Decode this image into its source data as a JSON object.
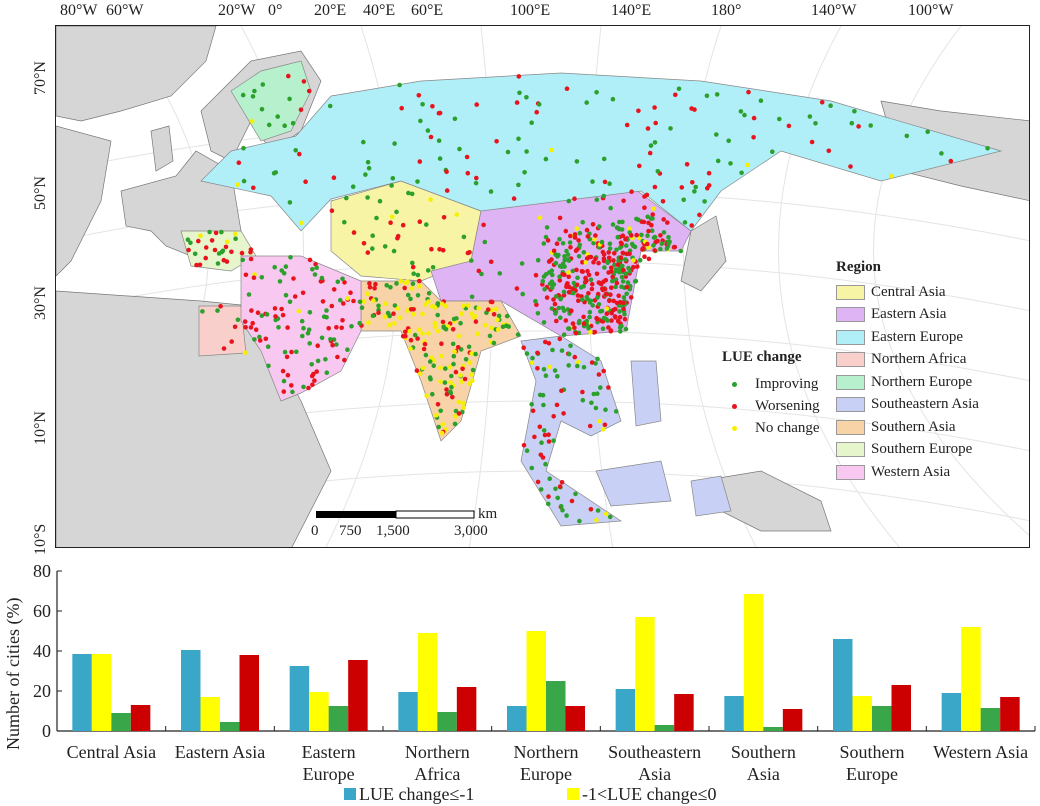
{
  "map": {
    "longitude_labels": [
      "80°W",
      "60°W",
      "20°W",
      "0°",
      "20°E",
      "40°E",
      "60°E",
      "100°E",
      "140°E",
      "180°",
      "140°W",
      "100°W"
    ],
    "latitude_labels": [
      "70°N",
      "50°N",
      "30°N",
      "10°N",
      "10°S"
    ],
    "scale_bar": {
      "unit": "km",
      "ticks": [
        "0",
        "750",
        "1,500",
        "3,000"
      ]
    },
    "region_legend": {
      "title": "Region",
      "items": [
        {
          "label": "Central Asia",
          "color": "#f7f4a6"
        },
        {
          "label": "Eastern Asia",
          "color": "#deb4f5"
        },
        {
          "label": "Eastern Europe",
          "color": "#b0eef8"
        },
        {
          "label": "Northern Africa",
          "color": "#f9cfcc"
        },
        {
          "label": "Northern Europe",
          "color": "#b6f0cc"
        },
        {
          "label": "Southeastern Asia",
          "color": "#c8d0f5"
        },
        {
          "label": "Southern Asia",
          "color": "#f8d3a8"
        },
        {
          "label": "Southern Europe",
          "color": "#e6f5cc"
        },
        {
          "label": "Western Asia",
          "color": "#f8c8f0"
        }
      ]
    },
    "lue_legend": {
      "title": "LUE change",
      "items": [
        {
          "label": "Improving",
          "color": "#2ca02c"
        },
        {
          "label": "Worsening",
          "color": "#e8141d"
        },
        {
          "label": "No change",
          "color": "#f5f000"
        }
      ]
    }
  },
  "chart_data": {
    "type": "bar",
    "categories": [
      "Central Asia",
      "Eastern Asia",
      "Eastern Europe",
      "Northern Africa",
      "Northern Europe",
      "Southeastern Asia",
      "Southern Asia",
      "Southern Europe",
      "Western Asia"
    ],
    "category_lines": [
      [
        "Central Asia"
      ],
      [
        "Eastern Asia"
      ],
      [
        "Eastern",
        "Europe"
      ],
      [
        "Northern",
        "Africa"
      ],
      [
        "Northern",
        "Europe"
      ],
      [
        "Southeastern",
        "Asia"
      ],
      [
        "Southern",
        "Asia"
      ],
      [
        "Southern",
        "Europe"
      ],
      [
        "Western Asia"
      ]
    ],
    "ylabel": "Number of cities (%)",
    "ylim": [
      0,
      80
    ],
    "yticks": [
      "0",
      "20",
      "40",
      "60",
      "80"
    ],
    "grid": false,
    "legend_position": "bottom",
    "series": [
      {
        "name": "LUE change≤-1",
        "color": "#3aa6c8",
        "values": [
          38.5,
          40.5,
          32.5,
          19.5,
          12.5,
          21,
          17.5,
          46,
          19
        ]
      },
      {
        "name": "-1<LUE change≤0",
        "color": "#ffff00",
        "values": [
          38.5,
          17,
          19.5,
          49,
          50,
          57,
          68.5,
          17.5,
          52
        ]
      },
      {
        "color": "#3aa64a",
        "values": [
          9,
          4.5,
          12.5,
          9.5,
          25,
          3,
          2,
          12.5,
          11.5
        ]
      },
      {
        "color": "#cc0000",
        "values": [
          13,
          38,
          35.5,
          22,
          12.5,
          18.5,
          11,
          23,
          17
        ]
      }
    ]
  }
}
